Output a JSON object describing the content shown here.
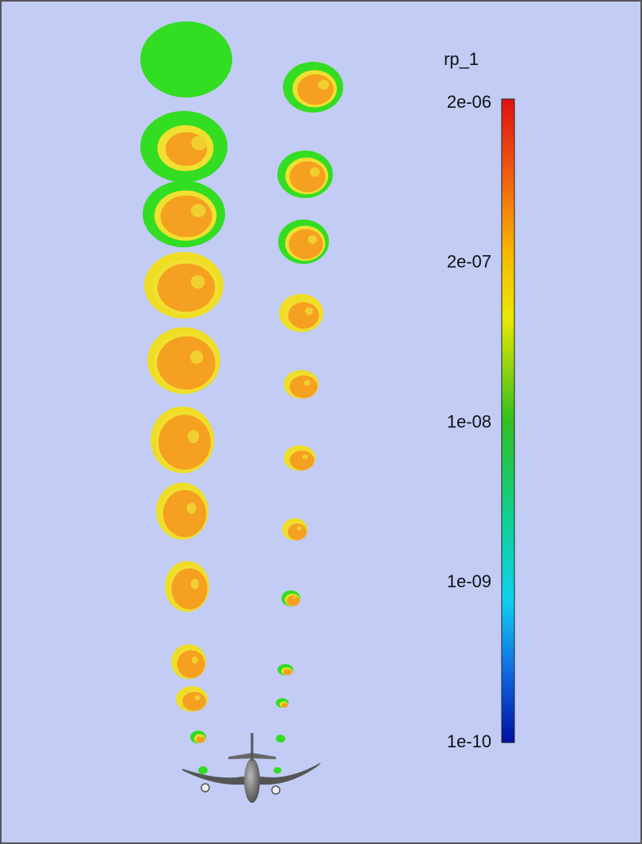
{
  "colorbar": {
    "title": "rp_1",
    "ticks": [
      "2e-06",
      "2e-07",
      "1e-08",
      "1e-09",
      "1e-10"
    ]
  }
}
